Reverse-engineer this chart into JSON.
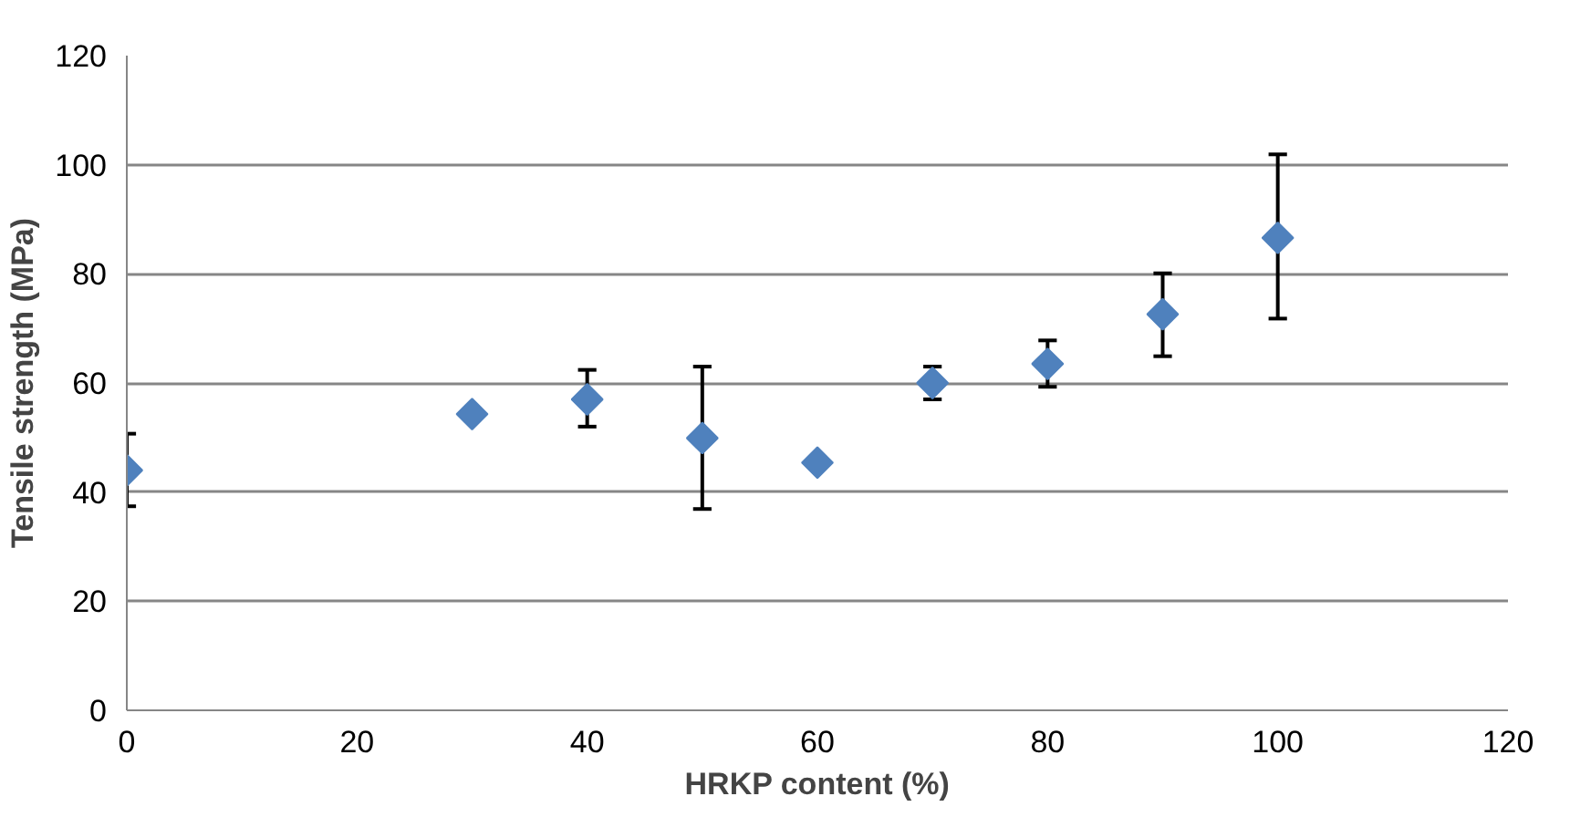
{
  "chart_data": {
    "type": "scatter",
    "xlabel": "HRKP content (%)",
    "ylabel": "Tensile strength (MPa)",
    "x": [
      0,
      30,
      40,
      50,
      60,
      70,
      80,
      90,
      100
    ],
    "series": [
      {
        "color": "#4f81bd",
        "values": [
          44,
          54.3,
          57,
          49.9,
          45.4,
          60,
          63.5,
          72.6,
          86.6
        ],
        "errors": [
          [
            37.4,
            50.7
          ],
          null,
          [
            52,
            62.4
          ],
          [
            36.9,
            63
          ],
          null,
          [
            57,
            63
          ],
          [
            59.3,
            67.8
          ],
          [
            64.9,
            80.1
          ],
          [
            71.8,
            101.9
          ]
        ]
      }
    ],
    "xlim": [
      0,
      120
    ],
    "xticks": [
      0,
      20,
      40,
      60,
      80,
      100,
      120
    ],
    "ylim": [
      0,
      120
    ],
    "yticks": [
      0,
      20,
      40,
      60,
      80,
      100,
      120
    ],
    "grid": "y",
    "marker": "diamond"
  }
}
